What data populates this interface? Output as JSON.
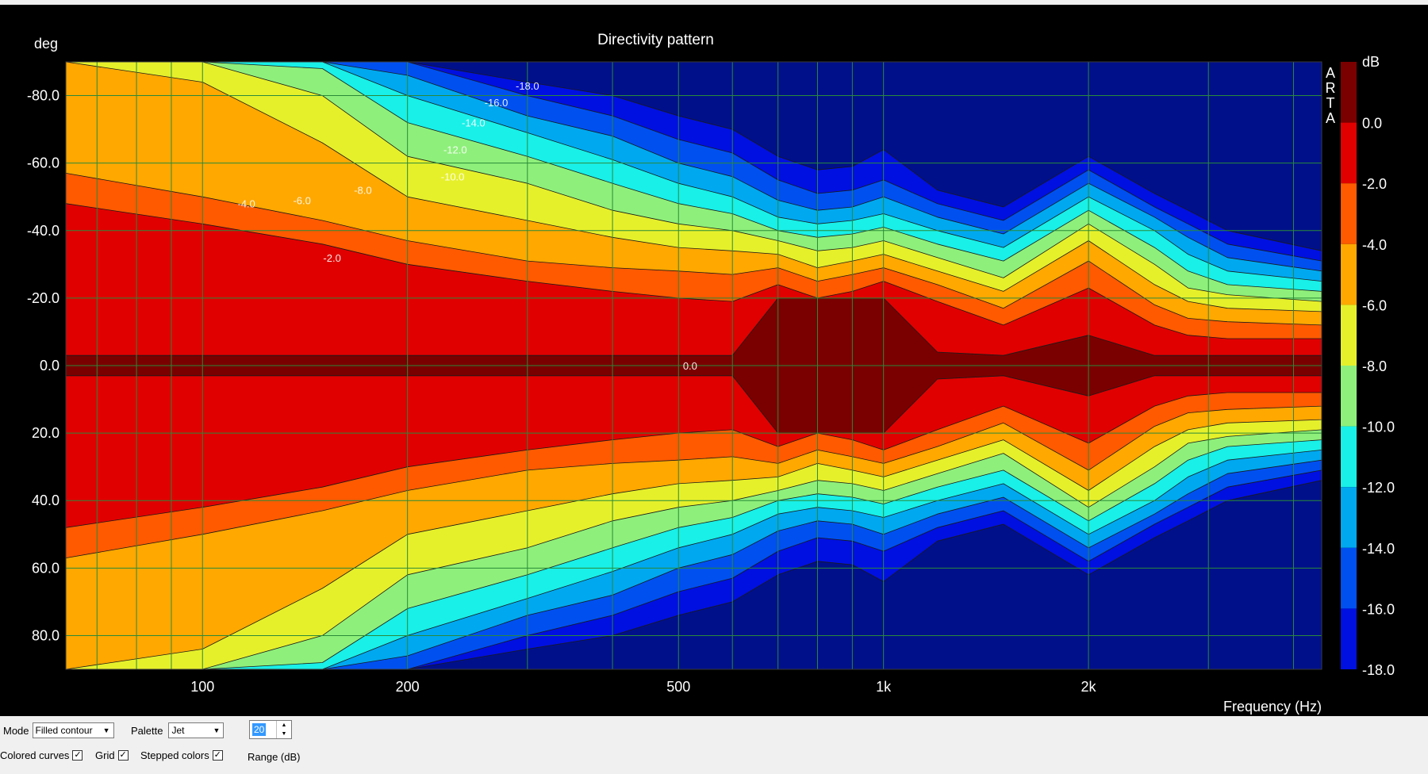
{
  "chart_data": {
    "type": "heatmap",
    "title": "Directivity pattern",
    "xlabel": "Frequency (Hz)",
    "ylabel": "deg",
    "x_scale": "log",
    "xlim": [
      63,
      4400
    ],
    "ylim": [
      -90,
      90
    ],
    "x_ticks": [
      100,
      200,
      500,
      1000,
      2000
    ],
    "x_tick_labels": [
      "100",
      "200",
      "500",
      "1k",
      "2k"
    ],
    "y_ticks": [
      -80,
      -60,
      -40,
      -20,
      0,
      20,
      40,
      60,
      80
    ],
    "y_tick_labels": [
      "-80.0",
      "-60.0",
      "-40.0",
      "-20.0",
      "0.0",
      "20.0",
      "40.0",
      "60.0",
      "80.0"
    ],
    "grid": true,
    "colorbar": {
      "unit": "dB",
      "levels": [
        0,
        -2,
        -4,
        -6,
        -8,
        -10,
        -12,
        -14,
        -16,
        -18
      ],
      "tick_labels": [
        "0.0",
        "-2.0",
        "-4.0",
        "-6.0",
        "-8.0",
        "-10.0",
        "-12.0",
        "-14.0",
        "-16.0",
        "-18.0"
      ],
      "colors": [
        "#7a0000",
        "#e00000",
        "#ff5a00",
        "#ffa800",
        "#e6f02a",
        "#8ef07a",
        "#18f0e8",
        "#00a8f0",
        "#0050f0",
        "#0010e0",
        "#00108a"
      ]
    },
    "angle_samples": [
      0,
      20,
      40,
      60,
      80,
      90
    ],
    "contour_half_widths": {
      "frequencies": [
        63,
        100,
        150,
        200,
        300,
        400,
        500,
        600,
        700,
        800,
        900,
        1000,
        1200,
        1500,
        2000,
        2500,
        2800,
        3200,
        4400
      ],
      "levels": {
        "-1": [
          3,
          3,
          3,
          3,
          3,
          3,
          3,
          3,
          20,
          20,
          20,
          20,
          4,
          3,
          9,
          3,
          3,
          3,
          3
        ],
        "-2": [
          48,
          42,
          36,
          30,
          25,
          22,
          20,
          19,
          24,
          20,
          22,
          25,
          19,
          12,
          23,
          12,
          9,
          8,
          8
        ],
        "-4": [
          57,
          50,
          43,
          37,
          31,
          29,
          28,
          27,
          29,
          25,
          27,
          29,
          24,
          17,
          31,
          18,
          14,
          13,
          12
        ],
        "-6": [
          90,
          84,
          66,
          50,
          43,
          38,
          35,
          34,
          33,
          29,
          31,
          33,
          28,
          22,
          37,
          24,
          19,
          17,
          16
        ],
        "-8": [
          90,
          90,
          80,
          62,
          54,
          46,
          42,
          40,
          37,
          34,
          35,
          37,
          32,
          26,
          42,
          30,
          23,
          21,
          19
        ],
        "-10": [
          90,
          90,
          88,
          72,
          62,
          54,
          48,
          45,
          40,
          38,
          39,
          41,
          36,
          31,
          46,
          35,
          28,
          24,
          22
        ],
        "-12": [
          90,
          90,
          90,
          80,
          69,
          61,
          54,
          50,
          44,
          42,
          43,
          45,
          40,
          35,
          50,
          40,
          33,
          28,
          25
        ],
        "-14": [
          90,
          90,
          90,
          86,
          74,
          68,
          60,
          56,
          49,
          46,
          47,
          50,
          44,
          39,
          54,
          44,
          38,
          32,
          28
        ],
        "-16": [
          90,
          90,
          90,
          90,
          80,
          74,
          67,
          63,
          55,
          51,
          52,
          55,
          48,
          43,
          58,
          47,
          42,
          36,
          31
        ],
        "-18": [
          90,
          90,
          90,
          90,
          84,
          80,
          74,
          70,
          62,
          58,
          59,
          64,
          52,
          47,
          62,
          51,
          46,
          40,
          34
        ]
      }
    },
    "contour_labels": [
      "-18.0",
      "-16.0",
      "-14.0",
      "-12.0",
      "-10.0",
      "-8.0",
      "-6.0",
      "-4.0",
      "-2.0",
      "0.0"
    ],
    "side_label": "A R T A"
  },
  "controls": {
    "mode_label": "Mode",
    "mode_value": "Filled contour",
    "palette_label": "Palette",
    "palette_value": "Jet",
    "range_value": "20",
    "range_label": "Range (dB)",
    "colored_curves_label": "Colored curves",
    "colored_curves_checked": true,
    "grid_label": "Grid",
    "grid_checked": true,
    "stepped_colors_label": "Stepped colors",
    "stepped_colors_checked": true
  }
}
